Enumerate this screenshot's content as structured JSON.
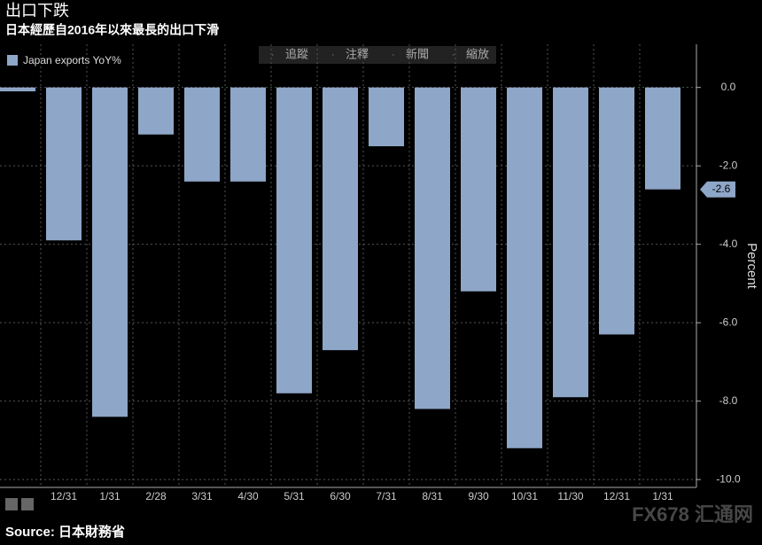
{
  "chart_data": {
    "type": "bar",
    "title": "出口下跌",
    "subtitle": "日本經歷自2016年以來最長的出口下滑",
    "categories": [
      null,
      "12/31",
      "1/31",
      "2/28",
      "3/31",
      "4/30",
      "5/31",
      "6/30",
      "7/31",
      "8/31",
      "9/30",
      "10/31",
      "11/30",
      "12/31",
      "1/31"
    ],
    "series": [
      {
        "name": "Japan exports YoY%",
        "color": "#8ea6c8",
        "values": [
          -0.1,
          -3.9,
          -8.4,
          -1.2,
          -2.4,
          -2.4,
          -7.8,
          -6.7,
          -1.5,
          -8.2,
          -5.2,
          -9.2,
          -7.9,
          -6.3,
          -2.6
        ]
      }
    ],
    "ylim": [
      -10.2,
      1.1
    ],
    "yticks": [
      {
        "value": 0,
        "label": "0.0"
      },
      {
        "value": -2,
        "label": "-2.0"
      },
      {
        "value": -4,
        "label": "-4.0"
      },
      {
        "value": -6,
        "label": "-6.0"
      },
      {
        "value": -8,
        "label": "-8.0"
      },
      {
        "value": -10,
        "label": "-10.0"
      }
    ],
    "y_label": "Percent",
    "grid": true
  },
  "toolbar": [
    "追蹤",
    "注釋",
    "新聞",
    "縮放"
  ],
  "source": "Source: 日本財務省",
  "watermark": "FX678 汇通网"
}
